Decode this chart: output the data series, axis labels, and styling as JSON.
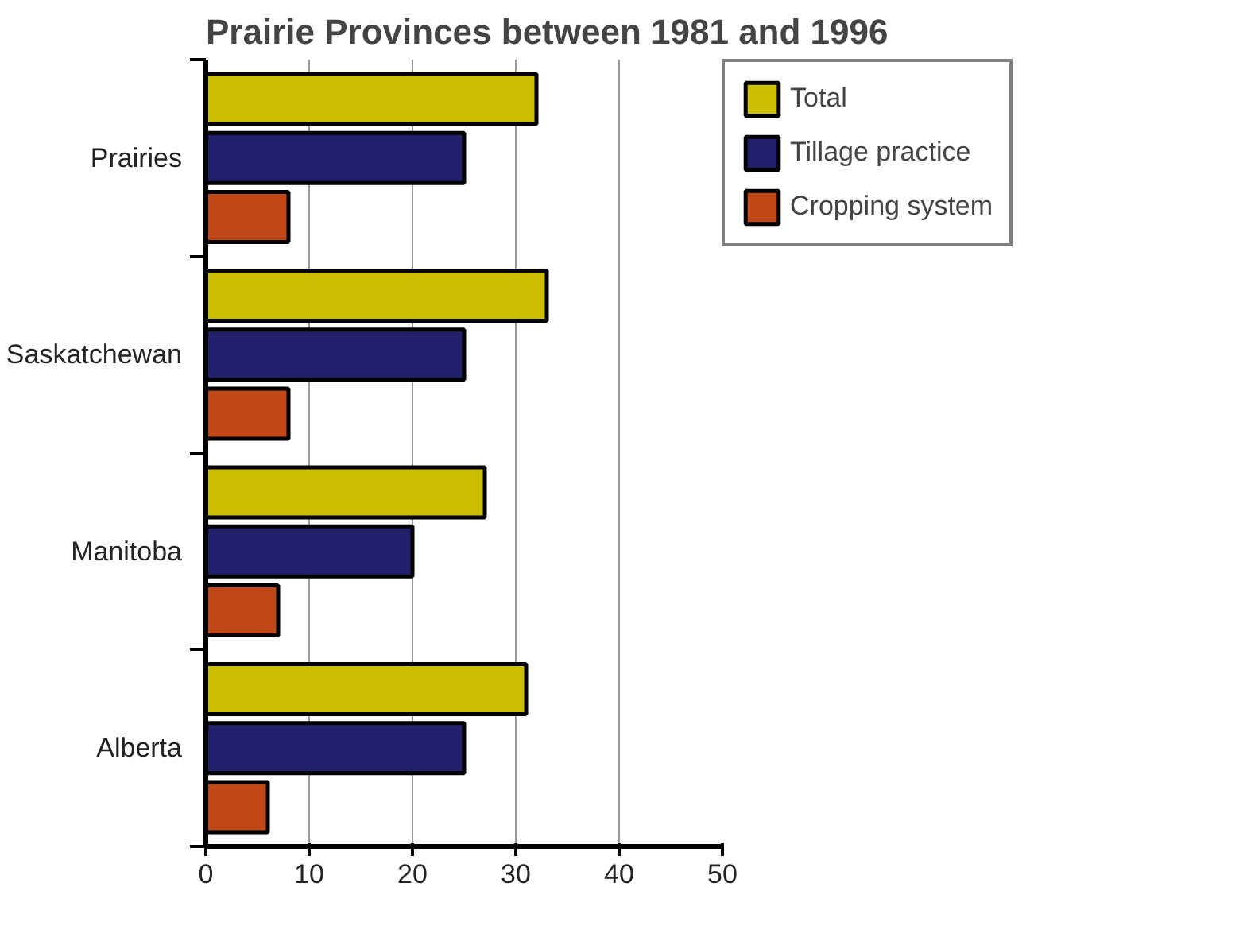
{
  "chart_data": {
    "type": "bar",
    "orientation": "horizontal",
    "title": "Prairie Provinces between 1981 and 1996",
    "categories": [
      "Prairies",
      "Saskatchewan",
      "Manitoba",
      "Alberta"
    ],
    "series": [
      {
        "name": "Total",
        "color": "#ccbf00",
        "values": [
          32,
          33,
          27,
          31
        ]
      },
      {
        "name": "Tillage practice",
        "color": "#22206a",
        "values": [
          25,
          25,
          20,
          25
        ]
      },
      {
        "name": "Cropping system",
        "color": "#c04818",
        "values": [
          8,
          8,
          7,
          6
        ]
      }
    ],
    "xlim": [
      0,
      50
    ],
    "xticks": [
      0,
      10,
      20,
      30,
      40,
      50
    ],
    "grid": "x",
    "legend": "top right"
  }
}
